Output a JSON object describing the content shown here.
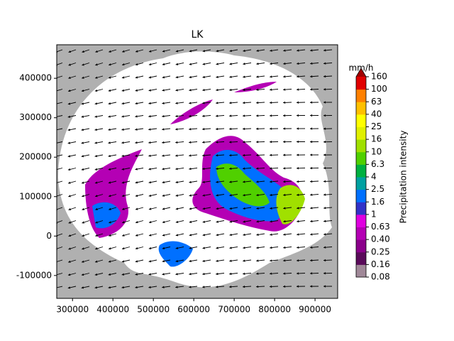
{
  "chart_data": {
    "type": "radar-map",
    "title": "LK",
    "xlim": [
      261000,
      956000
    ],
    "ylim": [
      -158000,
      485000
    ],
    "xticks": [
      300000,
      400000,
      500000,
      600000,
      700000,
      800000,
      900000
    ],
    "yticks": [
      -100000,
      0,
      100000,
      200000,
      300000,
      400000
    ],
    "colorbar": {
      "label": "Precipitation intensity",
      "unit": "mm/h",
      "levels": [
        0.08,
        0.16,
        0.25,
        {
          "value": 0.4,
          "label": "0.40"
        },
        0.63,
        1,
        1.6,
        2.5,
        4,
        6.3,
        10,
        16,
        25,
        40,
        63,
        100,
        160
      ],
      "colors": [
        "#a08898",
        "#5a0a5a",
        "#8a008a",
        "#b400b4",
        "#e000e0",
        "#3232c8",
        "#0070ff",
        "#00a0a0",
        "#00b040",
        "#50d000",
        "#a0e000",
        "#e0f000",
        "#ffff00",
        "#ffc000",
        "#ff8000",
        "#e00000"
      ],
      "extend_color": "#a00000"
    }
  }
}
